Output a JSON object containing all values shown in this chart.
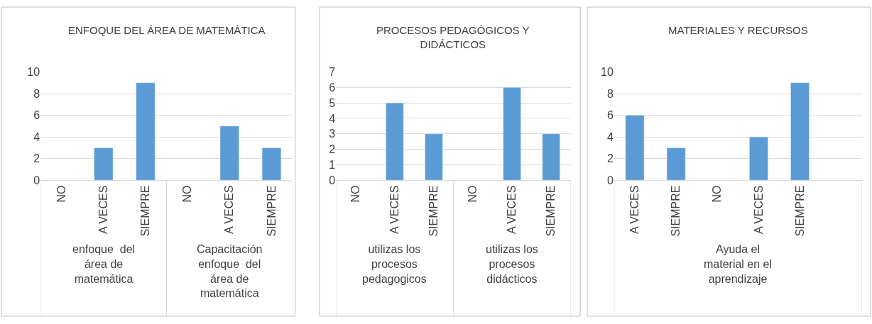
{
  "chart_data": [
    {
      "type": "bar",
      "title": "ENFOQUE DEL ÁREA DE MATEMÁTICA",
      "categories": [
        "NO",
        "A VECES",
        "SIEMPRE",
        "NO",
        "A VECES",
        "SIEMPRE"
      ],
      "values": [
        null,
        3,
        9,
        null,
        5,
        3
      ],
      "color": "#5b9bd5",
      "annotations": [
        "enfoque  del área de matemática",
        "Capacitación enfoque  del área de matemática"
      ],
      "ylim": [
        0,
        10
      ],
      "yticks": [
        0,
        2,
        4,
        6,
        8,
        10
      ],
      "grid": "y"
    },
    {
      "type": "bar",
      "title": "PROCESOS PEDAGÓGICOS Y DIDÁCTICOS",
      "categories": [
        "NO",
        "A VECES",
        "SIEMPRE",
        "NO",
        "A VECES",
        "SIEMPRE"
      ],
      "values": [
        null,
        5,
        3,
        null,
        6,
        3
      ],
      "color": "#5b9bd5",
      "annotations": [
        "utilizas los procesos pedagogicos",
        "utilizas los procesos didácticos"
      ],
      "ylim": [
        0,
        7
      ],
      "yticks": [
        0,
        1,
        2,
        3,
        4,
        5,
        6,
        7
      ],
      "grid": "y"
    },
    {
      "type": "bar",
      "title": "MATERIALES Y RECURSOS",
      "categories": [
        "A VECES",
        "SIEMPRE",
        "NO",
        "A VECES",
        "SIEMPRE",
        null
      ],
      "values": [
        6,
        3,
        null,
        4,
        9,
        null
      ],
      "color": "#5b9bd5",
      "annotations": [
        "Ayuda el material en el aprendizaje"
      ],
      "ylim": [
        0,
        10
      ],
      "yticks": [
        0,
        2,
        4,
        6,
        8,
        10
      ],
      "grid": "y"
    }
  ]
}
